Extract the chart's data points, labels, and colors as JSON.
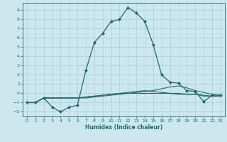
{
  "xlabel": "Humidex (Indice chaleur)",
  "background_color": "#cce8ee",
  "grid_color": "#aacdd6",
  "line_color": "#1a6b6b",
  "xlim": [
    -0.5,
    23.5
  ],
  "ylim": [
    -2.5,
    9.8
  ],
  "xticks": [
    0,
    1,
    2,
    3,
    4,
    5,
    6,
    7,
    8,
    9,
    10,
    11,
    12,
    13,
    14,
    15,
    16,
    17,
    18,
    19,
    20,
    21,
    22,
    23
  ],
  "yticks": [
    -2,
    -1,
    0,
    1,
    2,
    3,
    4,
    5,
    6,
    7,
    8,
    9
  ],
  "line1_x": [
    0,
    1,
    2,
    3,
    4,
    5,
    6,
    7,
    8,
    9,
    10,
    11,
    12,
    13,
    14,
    15,
    16,
    17,
    18,
    19,
    20,
    21,
    22,
    23
  ],
  "line1_y": [
    -1,
    -1,
    -0.5,
    -1.5,
    -2.0,
    -1.5,
    -1.3,
    2.5,
    5.5,
    6.5,
    7.8,
    8.0,
    9.3,
    8.7,
    7.8,
    5.3,
    2.0,
    1.2,
    1.1,
    0.3,
    0.2,
    -0.9,
    -0.2,
    -0.2
  ],
  "line2_x": [
    0,
    1,
    2,
    3,
    4,
    5,
    6,
    7,
    8,
    9,
    10,
    11,
    12,
    13,
    14,
    15,
    16,
    17,
    18,
    19,
    20,
    21,
    22,
    23
  ],
  "line2_y": [
    -1,
    -1,
    -0.5,
    -0.5,
    -0.5,
    -0.5,
    -0.5,
    -0.5,
    -0.4,
    -0.3,
    -0.2,
    -0.1,
    0.0,
    0.1,
    0.2,
    0.3,
    0.5,
    0.7,
    0.8,
    0.6,
    0.3,
    0.1,
    -0.1,
    -0.2
  ],
  "line3_x": [
    0,
    1,
    2,
    3,
    4,
    5,
    6,
    7,
    8,
    9,
    10,
    11,
    12,
    13,
    14,
    15,
    16,
    17,
    18,
    19,
    20,
    21,
    22,
    23
  ],
  "line3_y": [
    -1,
    -1,
    -0.5,
    -0.5,
    -0.5,
    -0.5,
    -0.5,
    -0.4,
    -0.3,
    -0.2,
    -0.1,
    0.0,
    0.1,
    0.2,
    0.3,
    0.2,
    0.1,
    0.0,
    -0.1,
    -0.1,
    -0.1,
    -0.3,
    -0.3,
    -0.3
  ],
  "line4_x": [
    0,
    1,
    2,
    3,
    4,
    5,
    6,
    7,
    8,
    9,
    10,
    11,
    12,
    13,
    14,
    15,
    16,
    17,
    18,
    19,
    20,
    21,
    22,
    23
  ],
  "line4_y": [
    -1,
    -1,
    -0.5,
    -0.5,
    -0.5,
    -0.5,
    -0.5,
    -0.4,
    -0.3,
    -0.2,
    -0.1,
    0.0,
    0.0,
    0.0,
    0.0,
    0.0,
    0.0,
    0.0,
    0.0,
    -0.1,
    -0.1,
    -0.2,
    -0.3,
    -0.3
  ]
}
